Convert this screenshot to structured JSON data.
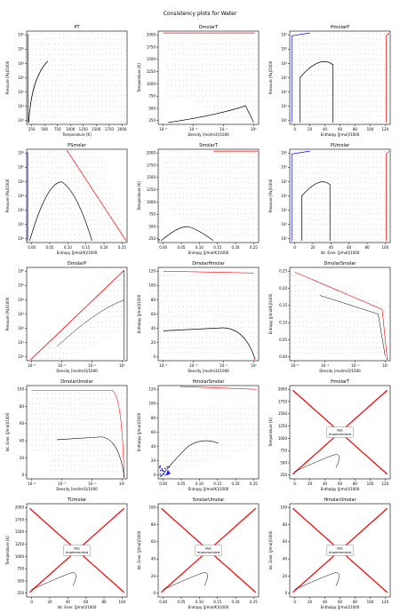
{
  "figure": {
    "suptitle": "Consistency plots for Water"
  },
  "styles": {
    "crit_color": "#ff0000",
    "sat_liquid_color": "#0000ff",
    "two_phase_color": "#000000",
    "grid_dot_color": "#333333",
    "not_implemented_line_color": "#ff0000"
  },
  "chart_data": [
    {
      "id": "PT",
      "type": "scatter",
      "title": "PT",
      "xlabel": "Temperature [K]",
      "ylabel": "Pressure [Pa]/1000",
      "xlim": [
        200,
        2050
      ],
      "ylog": true,
      "ylim": [
        0.5,
        2000000.0
      ],
      "xticks": [
        "250",
        "500",
        "750",
        "1000",
        "1250",
        "1500",
        "1750",
        "2000"
      ],
      "yticks": [
        "10⁰",
        "10¹",
        "10²",
        "10³",
        "10⁴",
        "10⁵",
        "10⁶"
      ],
      "implemented": true,
      "shape": "pt",
      "fine_grid": true
    },
    {
      "id": "DmolarT",
      "type": "scatter",
      "title": "DmolarT",
      "xlabel": "Density [mol/m3]/1000",
      "ylabel": "Temperature [K]",
      "xlog": true,
      "xlim": [
        1e-06,
        200
      ],
      "ylim": [
        150,
        2050
      ],
      "xticks": [
        "10⁻⁵",
        "10⁻³",
        "10⁻¹",
        "10¹"
      ],
      "yticks": [
        "250",
        "500",
        "750",
        "1000",
        "1250",
        "1500",
        "1750",
        "2000"
      ],
      "implemented": true,
      "shape": "dt",
      "red_edge": "top"
    },
    {
      "id": "HmolarP",
      "type": "scatter",
      "title": "HmolarP",
      "xlabel": "Enthalpy [J/mol]/1000",
      "ylabel": "Pressure [Pa]/1000",
      "xlim": [
        -5,
        125
      ],
      "ylog": true,
      "ylim": [
        0.5,
        2000000.0
      ],
      "xticks": [
        "0",
        "20",
        "40",
        "60",
        "80",
        "100",
        "120"
      ],
      "yticks": [
        "10⁰",
        "10¹",
        "10²",
        "10³",
        "10⁴",
        "10⁵",
        "10⁶"
      ],
      "implemented": true,
      "shape": "hp",
      "red_edge": "right"
    },
    {
      "id": "PSmolar",
      "type": "scatter",
      "title": "PSmolar",
      "xlabel": "Entropy [J/mol/K]/1000",
      "ylabel": "Pressure [Pa]/1000",
      "xlim": [
        -0.005,
        0.25
      ],
      "ylog": true,
      "ylim": [
        0.5,
        2000000.0
      ],
      "xticks": [
        "0.00",
        "0.05",
        "0.10",
        "0.15",
        "0.20",
        "0.25"
      ],
      "yticks": [
        "10⁰",
        "10¹",
        "10²",
        "10³",
        "10⁴",
        "10⁵",
        "10⁶"
      ],
      "implemented": true,
      "shape": "sp",
      "red_edge": "right"
    },
    {
      "id": "SmolarT",
      "type": "scatter",
      "title": "SmolarT",
      "xlabel": "Entropy [J/mol/K]/1000",
      "ylabel": "Temperature [K]",
      "xlim": [
        -0.005,
        0.25
      ],
      "ylim": [
        150,
        2050
      ],
      "xticks": [
        "0.00",
        "0.05",
        "0.10",
        "0.15",
        "0.20",
        "0.25"
      ],
      "yticks": [
        "250",
        "500",
        "750",
        "1000",
        "1250",
        "1500",
        "1750",
        "2000"
      ],
      "implemented": true,
      "shape": "st",
      "red_edge": "top"
    },
    {
      "id": "PUmolar",
      "type": "scatter",
      "title": "PUmolar",
      "xlabel": "Int. Ener. [J/mol]/1000",
      "ylabel": "Pressure [Pa]/1000",
      "xlim": [
        -5,
        110
      ],
      "ylog": true,
      "ylim": [
        0.5,
        2000000.0
      ],
      "xticks": [
        "0",
        "20",
        "40",
        "60",
        "80",
        "100"
      ],
      "yticks": [
        "10⁰",
        "10¹",
        "10²",
        "10³",
        "10⁴",
        "10⁵",
        "10⁶"
      ],
      "implemented": true,
      "shape": "up",
      "red_edge": "right"
    },
    {
      "id": "DmolarP",
      "type": "scatter",
      "title": "DmolarP",
      "xlabel": "Density [mol/m3]/1000",
      "ylabel": "Pressure [Pa]/1000",
      "xlog": true,
      "xlim": [
        1e-06,
        200
      ],
      "ylog": true,
      "ylim": [
        0.5,
        2000000.0
      ],
      "xticks": [
        "10⁻⁵",
        "10⁻³",
        "10⁻¹",
        "10¹"
      ],
      "yticks": [
        "10⁰",
        "10¹",
        "10²",
        "10³",
        "10⁴",
        "10⁵",
        "10⁶"
      ],
      "implemented": true,
      "shape": "dp",
      "red_edge": "diag"
    },
    {
      "id": "DmolarHmolar",
      "type": "scatter",
      "title": "DmolarHmolar",
      "xlabel": "Density [mol/m3]/1000",
      "ylabel": "Enthalpy [J/mol]/1000",
      "xlog": true,
      "xlim": [
        1e-06,
        200
      ],
      "ylim": [
        -5,
        125
      ],
      "xticks": [
        "10⁻⁵",
        "10⁻³",
        "10⁻¹",
        "10¹"
      ],
      "yticks": [
        "0",
        "20",
        "40",
        "60",
        "80",
        "100",
        "120"
      ],
      "implemented": true,
      "shape": "dh",
      "red_edge": "top"
    },
    {
      "id": "DmolarSmolar",
      "type": "scatter",
      "title": "DmolarSmolar",
      "xlabel": "Density [mol/m3]/1000",
      "ylabel": "Entropy [J/mol/K]/1000",
      "xlog": true,
      "xlim": [
        1e-06,
        200
      ],
      "ylim": [
        -0.01,
        0.25
      ],
      "xticks": [
        "10⁻⁵",
        "10⁻³",
        "10⁻¹",
        "10¹"
      ],
      "yticks": [
        "0.00",
        "0.05",
        "0.10",
        "0.15",
        "0.20",
        "0.25"
      ],
      "implemented": true,
      "shape": "ds",
      "red_edge": "top"
    },
    {
      "id": "DmolarUmolar",
      "type": "scatter",
      "title": "DmolarUmolar",
      "xlabel": "Density [mol/m3]/1000",
      "ylabel": "Int. Ener. [J/mol]/1000",
      "xlog": true,
      "xlim": [
        1e-06,
        200
      ],
      "ylim": [
        -5,
        105
      ],
      "xticks": [
        "10⁻⁵",
        "10⁻³",
        "10⁻¹",
        "10¹"
      ],
      "yticks": [
        "0",
        "20",
        "40",
        "60",
        "80",
        "100"
      ],
      "implemented": true,
      "shape": "du",
      "red_edge": "top"
    },
    {
      "id": "HmolarSmolar",
      "type": "scatter",
      "title": "HmolarSmolar",
      "xlabel": "Entropy [J/mol/K]/1000",
      "ylabel": "Enthalpy [J/mol]/1000",
      "xlim": [
        -0.01,
        0.25
      ],
      "ylim": [
        -5,
        125
      ],
      "xticks": [
        "0.00",
        "0.05",
        "0.10",
        "0.15",
        "0.20",
        "0.25"
      ],
      "yticks": [
        "0",
        "20",
        "40",
        "60",
        "80",
        "100",
        "120"
      ],
      "implemented": true,
      "shape": "hs",
      "red_edge": "top"
    },
    {
      "id": "HmolarT",
      "type": "scatter",
      "title": "HmolarT",
      "xlabel": "Enthalpy [J/mol]/1000",
      "ylabel": "Temperature [K]",
      "xlim": [
        -5,
        130
      ],
      "ylim": [
        150,
        2050
      ],
      "xticks": [
        "0",
        "20",
        "40",
        "60",
        "80",
        "100",
        "120"
      ],
      "yticks": [
        "250",
        "500",
        "750",
        "1000",
        "1250",
        "1500",
        "1750",
        "2000"
      ],
      "implemented": false,
      "not_implemented_label": "Not\nImplemented"
    },
    {
      "id": "TUmolar",
      "type": "scatter",
      "title": "TUmolar",
      "xlabel": "Int. Ener. [J/mol]/1000",
      "ylabel": "Temperature [K]",
      "xlim": [
        -5,
        110
      ],
      "ylim": [
        150,
        2050
      ],
      "xticks": [
        "0",
        "20",
        "40",
        "60",
        "80",
        "100"
      ],
      "yticks": [
        "250",
        "500",
        "750",
        "1000",
        "1250",
        "1500",
        "1750",
        "2000"
      ],
      "implemented": false,
      "not_implemented_label": "Not\nImplemented"
    },
    {
      "id": "SmolarUmolar",
      "type": "scatter",
      "title": "SmolarUmolar",
      "xlabel": "Entropy [J/mol/K]/1000",
      "ylabel": "Int. Ener. [J/mol]/1000",
      "xlim": [
        -0.01,
        0.25
      ],
      "ylim": [
        -5,
        105
      ],
      "xticks": [
        "0.00",
        "0.05",
        "0.10",
        "0.15",
        "0.20",
        "0.25"
      ],
      "yticks": [
        "0",
        "20",
        "40",
        "60",
        "80",
        "100"
      ],
      "implemented": false,
      "not_implemented_label": "Not\nImplemented"
    },
    {
      "id": "HmolarUmolar",
      "type": "scatter",
      "title": "HmolarUmolar",
      "xlabel": "Enthalpy [J/mol]/1000",
      "ylabel": "Int. Ener. [J/mol]/1000",
      "xlim": [
        -5,
        130
      ],
      "ylim": [
        -5,
        105
      ],
      "xticks": [
        "0",
        "20",
        "40",
        "60",
        "80",
        "100",
        "120"
      ],
      "yticks": [
        "0",
        "20",
        "40",
        "60",
        "80",
        "100"
      ],
      "implemented": false,
      "not_implemented_label": "Not\nImplemented"
    }
  ]
}
